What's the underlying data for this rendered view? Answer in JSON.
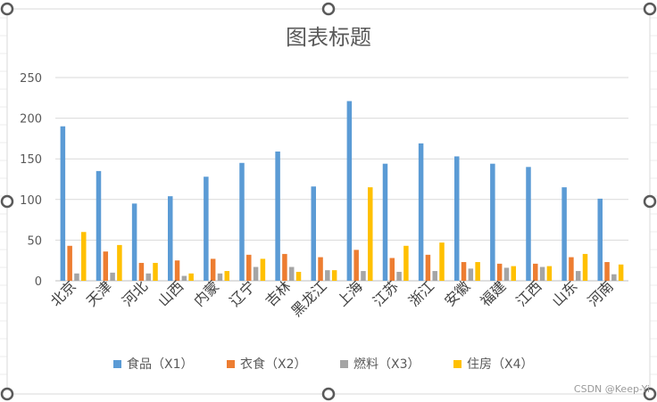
{
  "chart_data": {
    "type": "bar",
    "title": "图表标题",
    "xlabel": "",
    "ylabel": "",
    "ylim": [
      0,
      250
    ],
    "yticks": [
      0,
      50,
      100,
      150,
      200,
      250
    ],
    "grid": true,
    "legend_position": "bottom",
    "categories": [
      "北京",
      "天津",
      "河北",
      "山西",
      "内蒙",
      "辽宁",
      "吉林",
      "黑龙江",
      "上海",
      "江苏",
      "浙江",
      "安徽",
      "福建",
      "江西",
      "山东",
      "河南"
    ],
    "series": [
      {
        "name": "食品（X1）",
        "color": "#5B9BD5",
        "values": [
          190,
          135,
          95,
          104,
          128,
          145,
          159,
          116,
          221,
          144,
          169,
          153,
          144,
          140,
          115,
          101
        ]
      },
      {
        "name": "衣食（X2）",
        "color": "#ED7D31",
        "values": [
          43,
          36,
          22,
          25,
          27,
          32,
          33,
          29,
          38,
          28,
          32,
          23,
          21,
          21,
          29,
          23
        ]
      },
      {
        "name": "燃料（X3）",
        "color": "#A5A5A5",
        "values": [
          9,
          10,
          9,
          6,
          9,
          17,
          17,
          13,
          12,
          11,
          12,
          15,
          16,
          17,
          12,
          8
        ]
      },
      {
        "name": "住房（X4）",
        "color": "#FFC000",
        "values": [
          60,
          44,
          22,
          9,
          12,
          27,
          11,
          13,
          115,
          43,
          47,
          23,
          18,
          18,
          33,
          20
        ]
      }
    ]
  },
  "watermark": "CSDN @Keep-Yi"
}
